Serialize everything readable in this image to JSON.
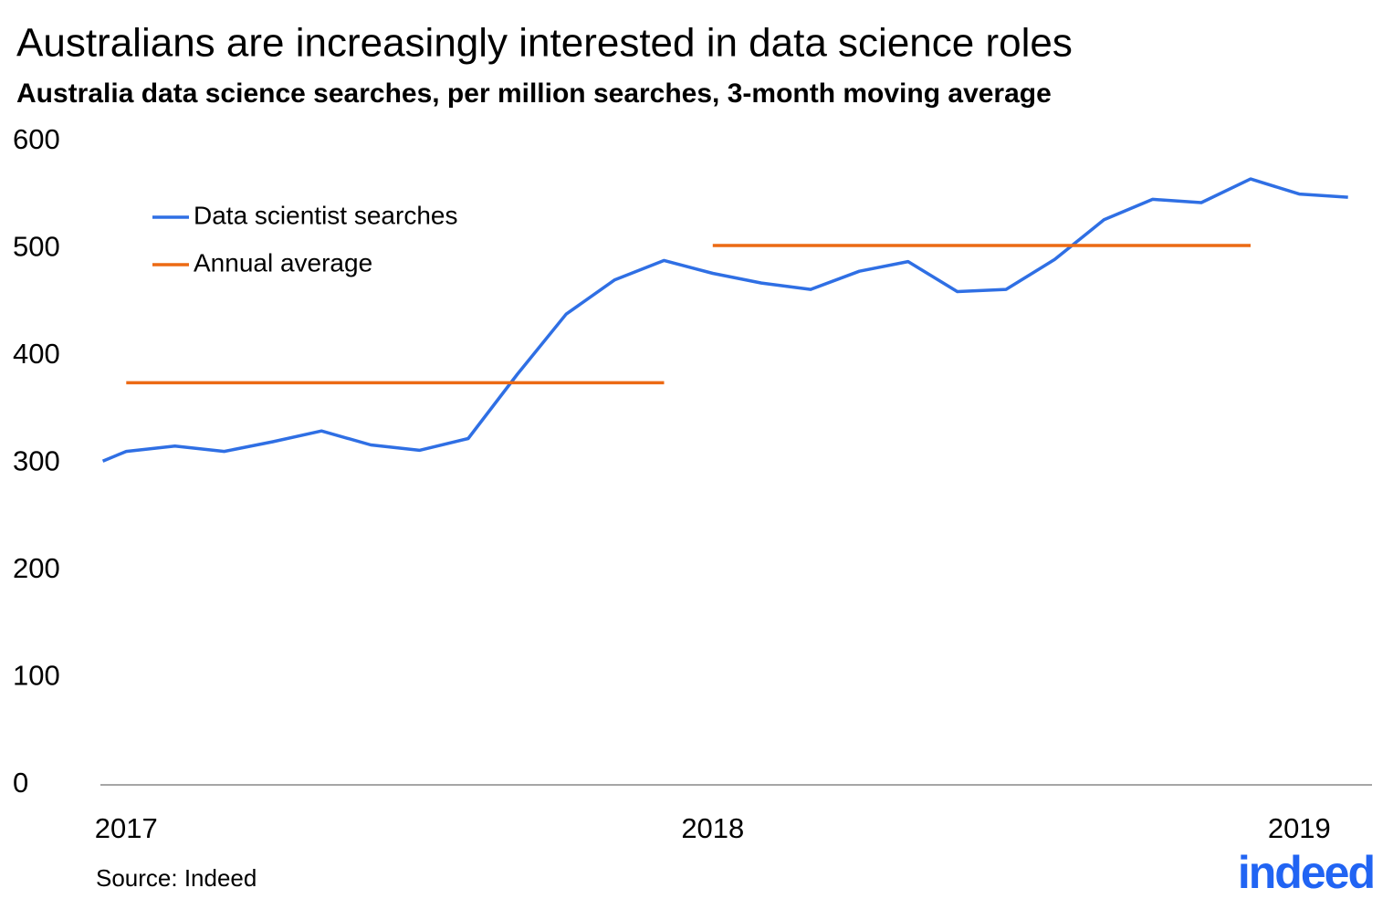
{
  "chart_data": {
    "type": "line",
    "title": "Australians are increasingly interested in data science roles",
    "subtitle": "Australia data science searches, per million searches, 3-month moving average",
    "source": "Source: Indeed",
    "logo": "indeed",
    "series": [
      {
        "name": "Data scientist searches",
        "color": "#2f6fe4",
        "x": [
          2016.96,
          2017,
          2017.083,
          2017.167,
          2017.25,
          2017.333,
          2017.417,
          2017.5,
          2017.583,
          2017.667,
          2017.75,
          2017.833,
          2017.917,
          2018,
          2018.083,
          2018.167,
          2018.25,
          2018.333,
          2018.417,
          2018.5,
          2018.583,
          2018.667,
          2018.75,
          2018.833,
          2018.917,
          2019,
          2019.083
        ],
        "values": [
          302,
          311,
          316,
          311,
          320,
          330,
          317,
          312,
          323,
          383,
          439,
          471,
          489,
          477,
          468,
          462,
          479,
          488,
          460,
          462,
          490,
          527,
          546,
          543,
          565,
          551,
          548
        ]
      },
      {
        "name": "Annual average",
        "color": "#ec6a14",
        "x": [
          2017,
          2017.917,
          null,
          2018,
          2018.917
        ],
        "values": [
          375,
          375,
          null,
          503,
          503
        ]
      }
    ],
    "xlim": [
      2016.956,
      2019.124
    ],
    "xticks": [
      2017,
      2018,
      2019
    ],
    "ylim": [
      0,
      600
    ],
    "yticks": [
      0,
      100,
      200,
      300,
      400,
      500,
      600
    ],
    "grid": false,
    "legend": "top-left"
  }
}
